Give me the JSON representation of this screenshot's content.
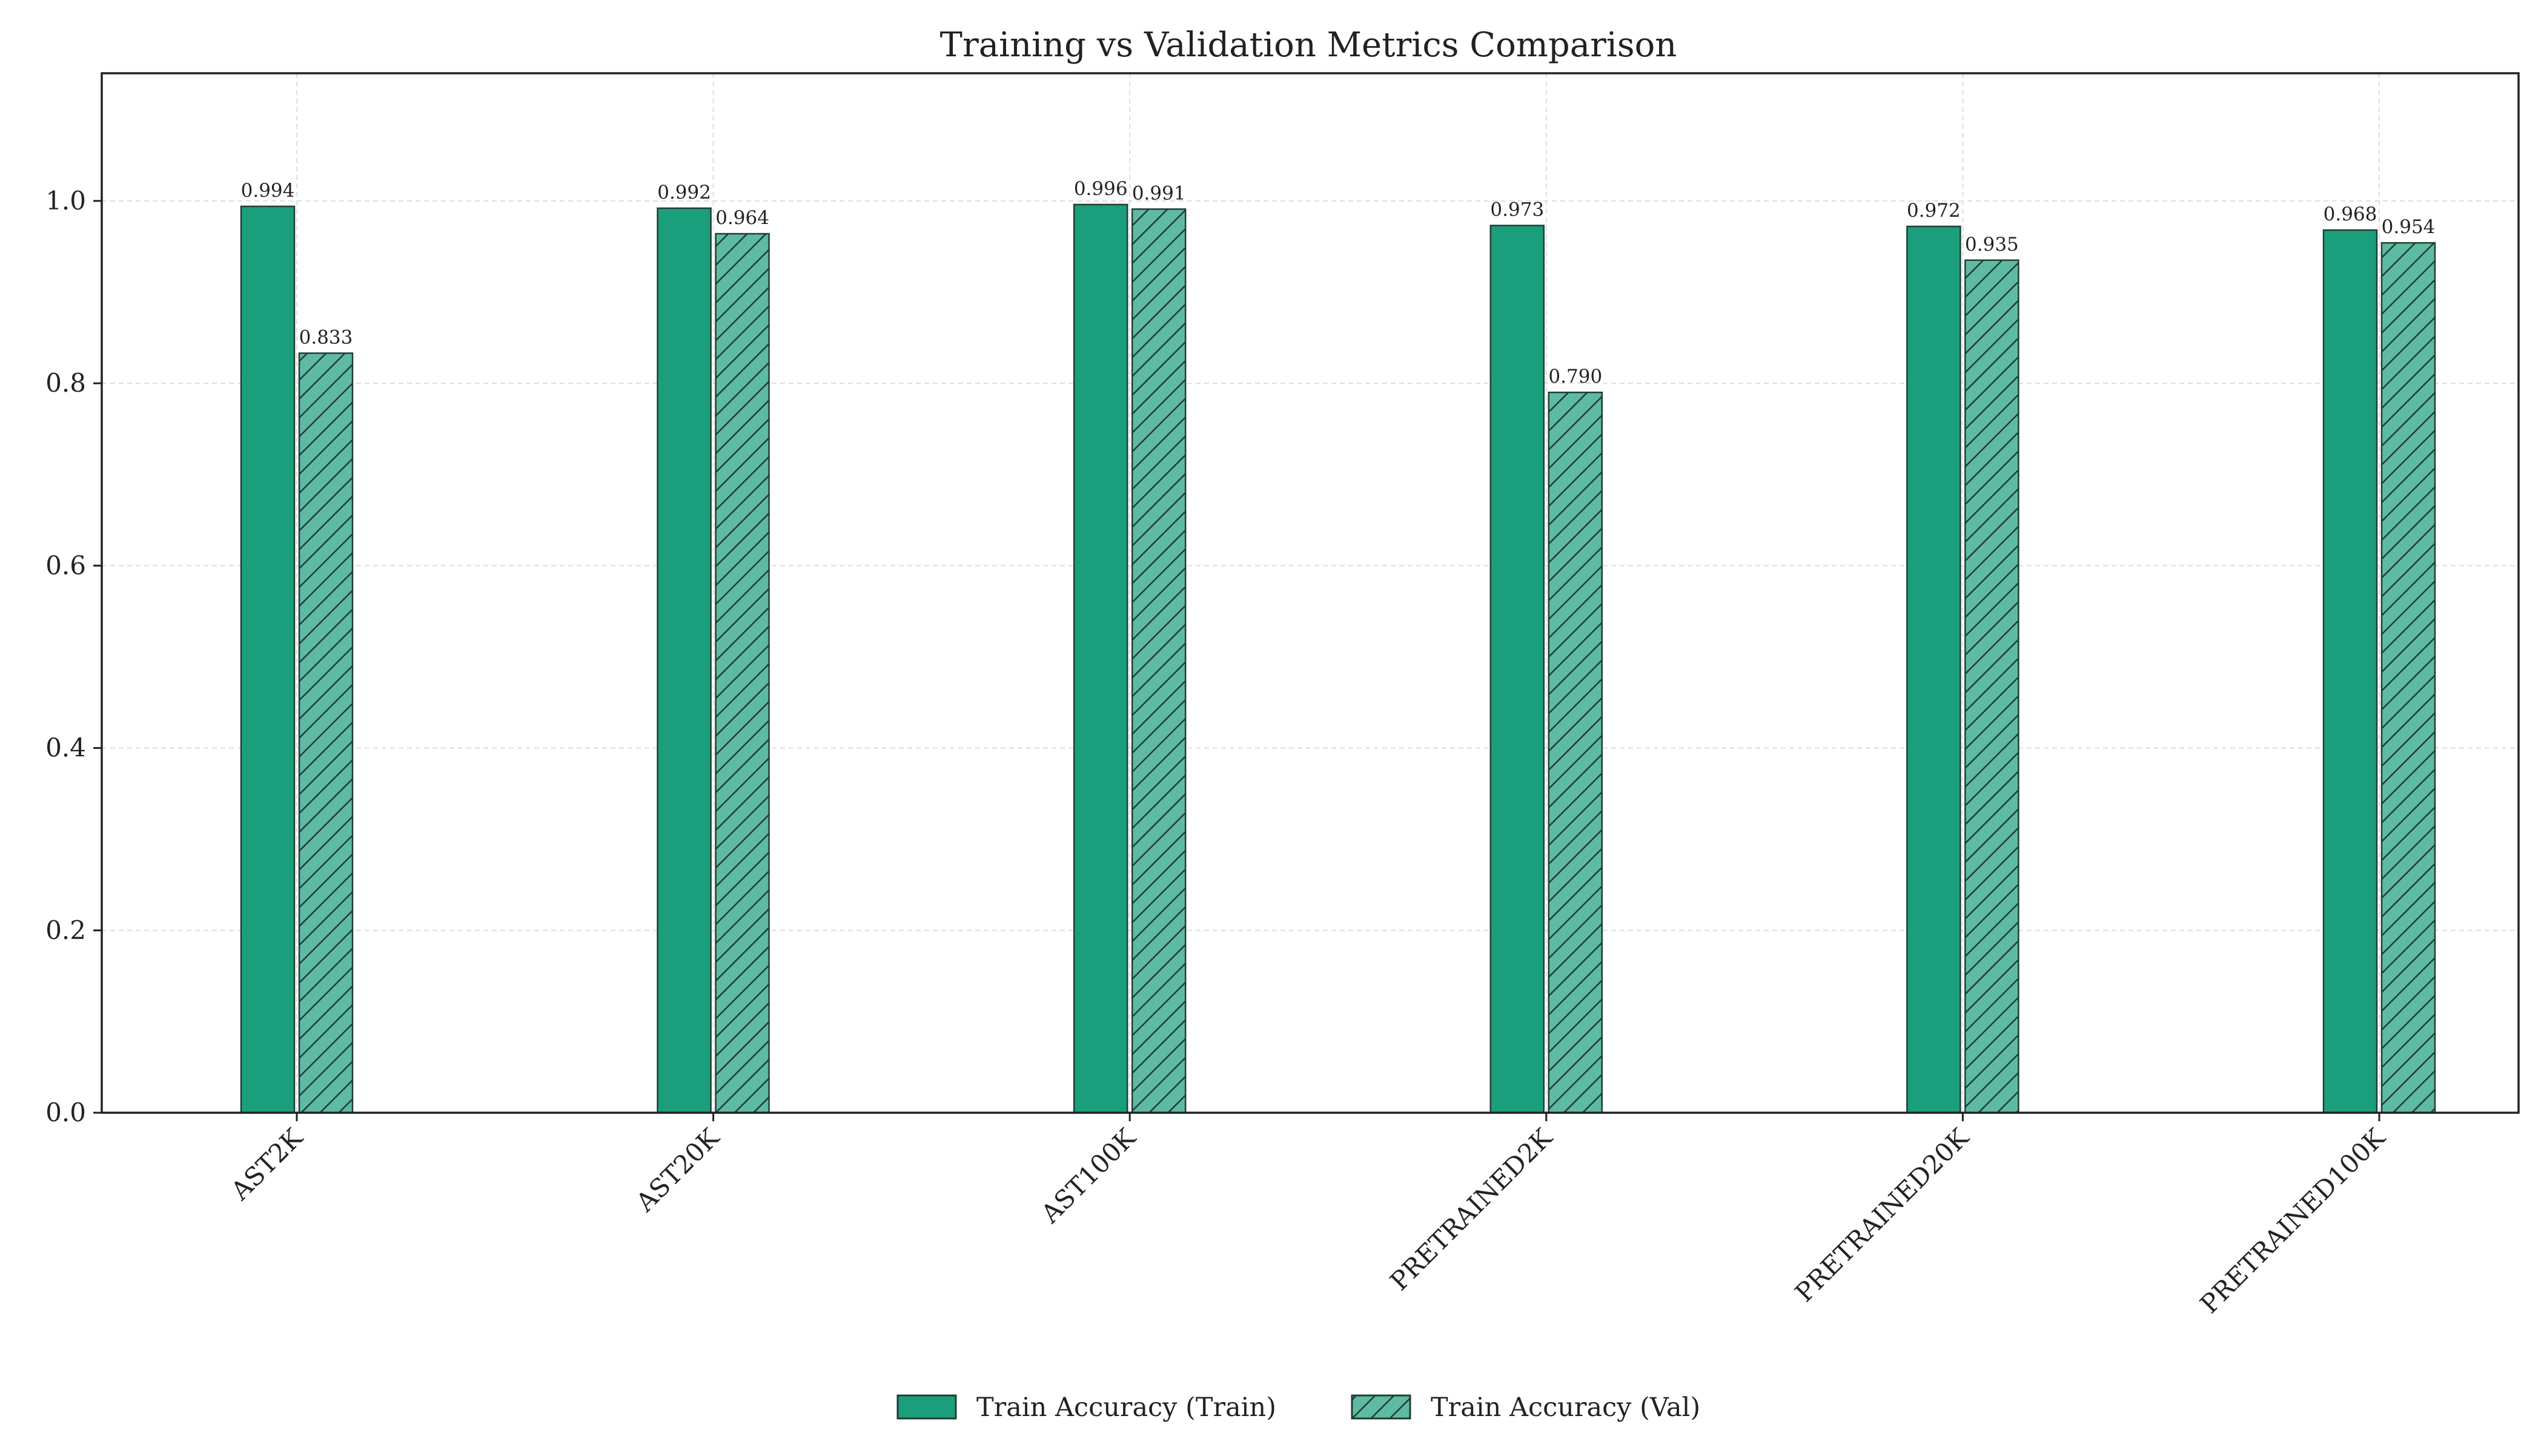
{
  "chart_data": {
    "type": "bar",
    "title": "Training vs Validation Metrics Comparison",
    "xlabel": "",
    "ylabel": "",
    "categories": [
      "AST2K",
      "AST20K",
      "AST100K",
      "PRETRAINED2K",
      "PRETRAINED20K",
      "PRETRAINED100K"
    ],
    "series": [
      {
        "name": "Train Accuracy (Train)",
        "values": [
          0.994,
          0.992,
          0.996,
          0.973,
          0.972,
          0.968
        ],
        "labels": [
          "0.994",
          "0.992",
          "0.996",
          "0.973",
          "0.972",
          "0.968"
        ],
        "color": "#1b9e7c",
        "hatch": false
      },
      {
        "name": "Train Accuracy (Val)",
        "values": [
          0.833,
          0.964,
          0.991,
          0.79,
          0.935,
          0.954
        ],
        "labels": [
          "0.833",
          "0.964",
          "0.991",
          "0.790",
          "0.935",
          "0.954"
        ],
        "color": "#5fbaa3",
        "hatch": true
      }
    ],
    "ylim": [
      0,
      1.14
    ],
    "yticks": [
      "0.0",
      "0.2",
      "0.4",
      "0.6",
      "0.8",
      "1.0"
    ],
    "grid": true,
    "legend_position": "bottom-center"
  }
}
